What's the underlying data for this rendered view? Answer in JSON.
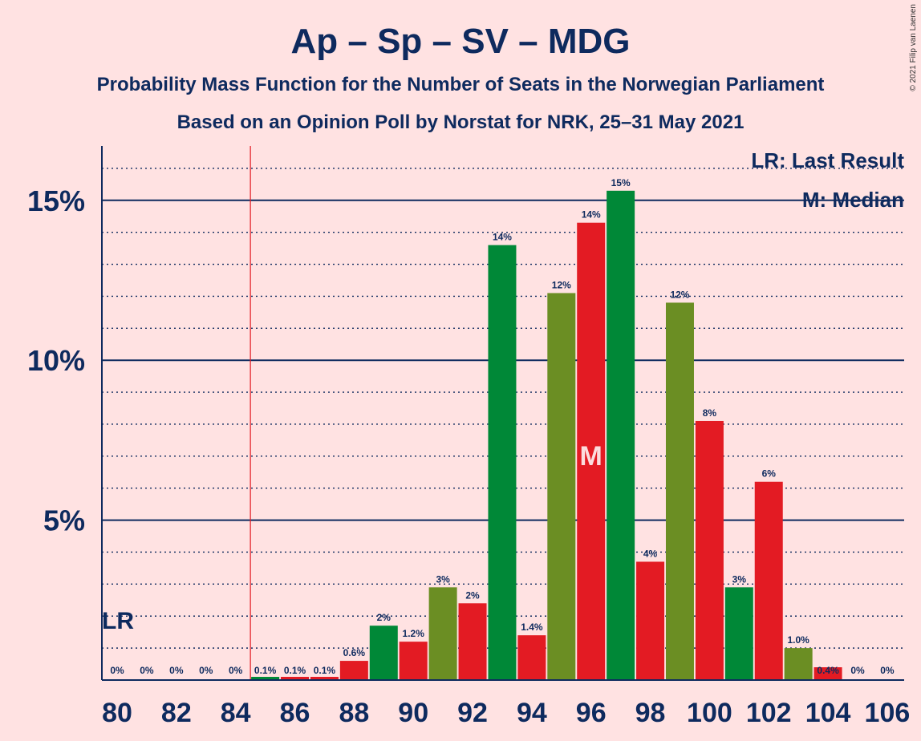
{
  "header": {
    "title": "Ap – Sp – SV – MDG",
    "subtitle": "Probability Mass Function for the Number of Seats in the Norwegian Parliament",
    "source": "Based on an Opinion Poll by Norstat for NRK, 25–31 May 2021",
    "copyright": "© 2021 Filip van Laenen"
  },
  "legend": {
    "last_result": "LR: Last Result",
    "median": "M: Median"
  },
  "markers": {
    "lr_label": "LR",
    "lr_seat": 84.5,
    "median_label": "M",
    "median_seat": 96
  },
  "colors": {
    "background": "#FFE2E2",
    "ap_red": "#E31B23",
    "sp_green": "#008837",
    "sv_olive": "#6B8E23",
    "text_navy": "#0E2A5E",
    "lr_line": "#E31B23"
  },
  "chart_data": {
    "type": "bar",
    "title": "Ap – Sp – SV – MDG",
    "xlabel": "",
    "ylabel": "",
    "ylim": [
      0,
      16.7
    ],
    "x_tick_labels": [
      "80",
      "82",
      "84",
      "86",
      "88",
      "90",
      "92",
      "94",
      "96",
      "98",
      "100",
      "102",
      "104",
      "106"
    ],
    "y_ticks": [
      {
        "value": 5,
        "label": "5%"
      },
      {
        "value": 10,
        "label": "10%"
      },
      {
        "value": 15,
        "label": "15%"
      }
    ],
    "grid": "major solid at 5% steps, dotted minor at 1% steps",
    "categories": [
      80,
      81,
      82,
      83,
      84,
      85,
      86,
      87,
      88,
      89,
      90,
      91,
      92,
      93,
      94,
      95,
      96,
      97,
      98,
      99,
      100,
      101,
      102,
      103,
      104,
      105,
      106
    ],
    "values": [
      0,
      0,
      0,
      0,
      0,
      0.1,
      0.1,
      0.1,
      0.6,
      1.7,
      1.2,
      2.9,
      2.4,
      13.6,
      1.4,
      12.1,
      14.3,
      15.3,
      3.7,
      11.8,
      8.1,
      2.9,
      6.2,
      1.0,
      0.4,
      0,
      0
    ],
    "labels": [
      "0%",
      "0%",
      "0%",
      "0%",
      "0%",
      "0.1%",
      "0.1%",
      "0.1%",
      "0.6%",
      "2%",
      "1.2%",
      "3%",
      "2%",
      "14%",
      "1.4%",
      "12%",
      "14%",
      "15%",
      "4%",
      "12%",
      "8%",
      "3%",
      "6%",
      "1.0%",
      "0.4%",
      "0%",
      "0%"
    ],
    "bar_colors": [
      "",
      "",
      "",
      "",
      "",
      "green",
      "red",
      "red",
      "red",
      "green",
      "red",
      "olive",
      "red",
      "green",
      "red",
      "olive",
      "red",
      "green",
      "red",
      "olive",
      "red",
      "green",
      "red",
      "olive",
      "red",
      "",
      ""
    ]
  }
}
